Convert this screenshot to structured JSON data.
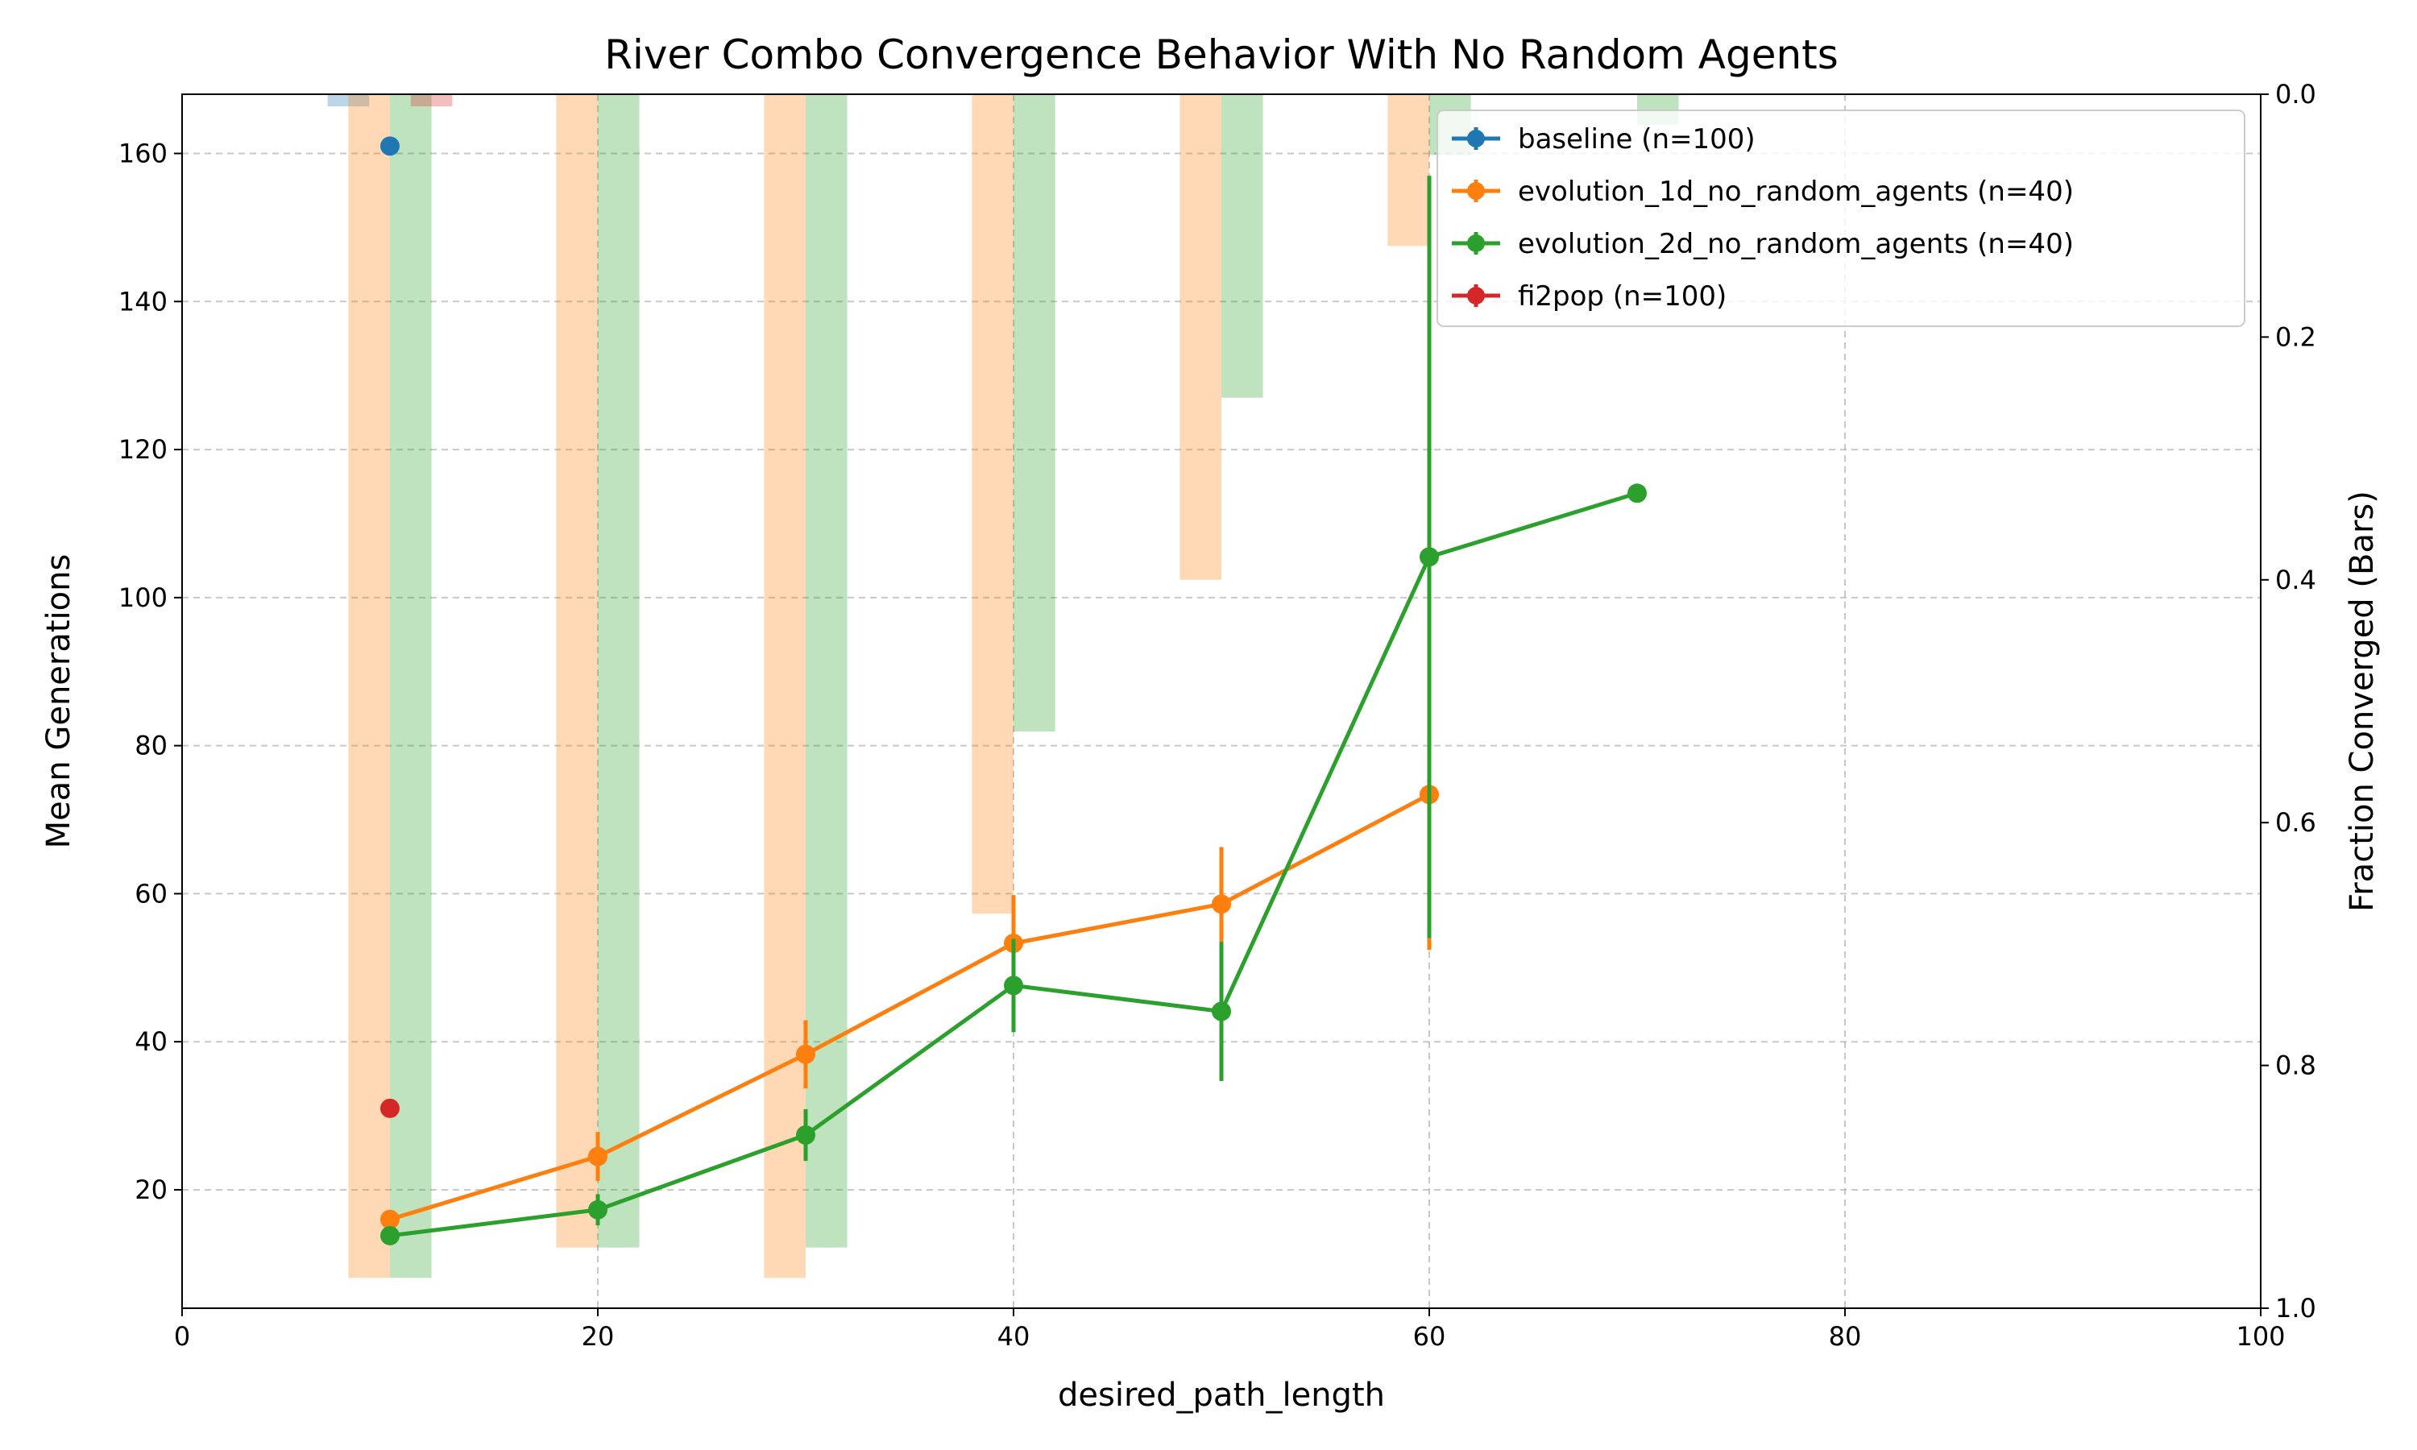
{
  "chart_data": {
    "type": "line",
    "title": "River Combo Convergence Behavior With No Random Agents",
    "xlabel": "desired_path_length",
    "ylabel": "Mean Generations",
    "y2label": "Fraction Converged (Bars)",
    "xlim": [
      0,
      100
    ],
    "ylim": [
      4,
      168
    ],
    "y2lim": [
      1.0,
      0.0
    ],
    "y2_inverted": true,
    "grid": true,
    "legend_position": "top-right",
    "x_ticks": [
      "0",
      "20",
      "40",
      "60",
      "80",
      "100"
    ],
    "x_tick_values": [
      0,
      20,
      40,
      60,
      80,
      100
    ],
    "y_ticks": [
      "20",
      "40",
      "60",
      "80",
      "100",
      "120",
      "140",
      "160"
    ],
    "y_tick_values": [
      20,
      40,
      60,
      80,
      100,
      120,
      140,
      160
    ],
    "y2_ticks": [
      "0.0",
      "0.2",
      "0.4",
      "0.6",
      "0.8",
      "1.0"
    ],
    "y2_tick_values": [
      0.0,
      0.2,
      0.4,
      0.6,
      0.8,
      1.0
    ],
    "series": [
      {
        "name": "baseline (n=100)",
        "color": "#1f77b4",
        "x": [
          10
        ],
        "y": [
          161
        ],
        "yerr": [
          0
        ],
        "bar_fraction": [
          0.01
        ],
        "bar_offset": -2
      },
      {
        "name": "evolution_1d_no_random_agents (n=40)",
        "color": "#ff7f0e",
        "x": [
          10,
          20,
          30,
          40,
          50,
          60
        ],
        "y": [
          16,
          24.5,
          38.3,
          53.3,
          58.6,
          73.4
        ],
        "yerr": [
          1.2,
          3.3,
          4.6,
          6.5,
          7.7,
          21
        ],
        "bar_fraction": [
          0.975,
          0.95,
          0.975,
          0.675,
          0.4,
          0.125
        ],
        "bar_offset": -1
      },
      {
        "name": "evolution_2d_no_random_agents (n=40)",
        "color": "#2ca02c",
        "x": [
          10,
          20,
          30,
          40,
          50,
          60,
          70
        ],
        "y": [
          13.8,
          17.3,
          27.4,
          47.6,
          44.1,
          105.5,
          114.1
        ],
        "yerr": [
          1.2,
          2.1,
          3.5,
          6.3,
          9.4,
          51.5,
          0
        ],
        "bar_fraction": [
          0.975,
          0.95,
          0.95,
          0.525,
          0.25,
          0.05,
          0.025
        ],
        "bar_offset": 1
      },
      {
        "name": "fi2pop (n=100)",
        "color": "#d62728",
        "x": [
          10
        ],
        "y": [
          31
        ],
        "yerr": [
          0
        ],
        "bar_fraction": [
          0.01
        ],
        "bar_offset": 2
      }
    ]
  }
}
